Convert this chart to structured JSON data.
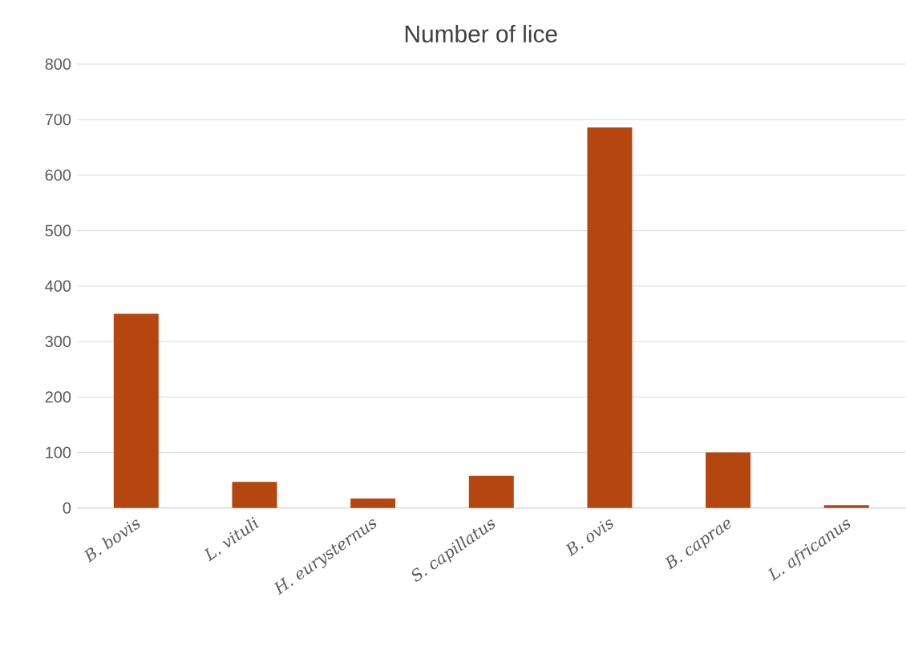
{
  "chart_data": {
    "type": "bar",
    "title": "Number of lice",
    "categories": [
      "B. bovis",
      "L. vituli",
      "H. eurysternus",
      "S. capillatus",
      "B. ovis",
      "B. caprae",
      "L. africanus"
    ],
    "values": [
      350,
      47,
      17,
      58,
      686,
      100,
      5
    ],
    "color": "#b5460f",
    "ylim": [
      0,
      800
    ],
    "yticks": [
      0,
      100,
      200,
      300,
      400,
      500,
      600,
      700,
      800
    ],
    "grid": "y"
  }
}
